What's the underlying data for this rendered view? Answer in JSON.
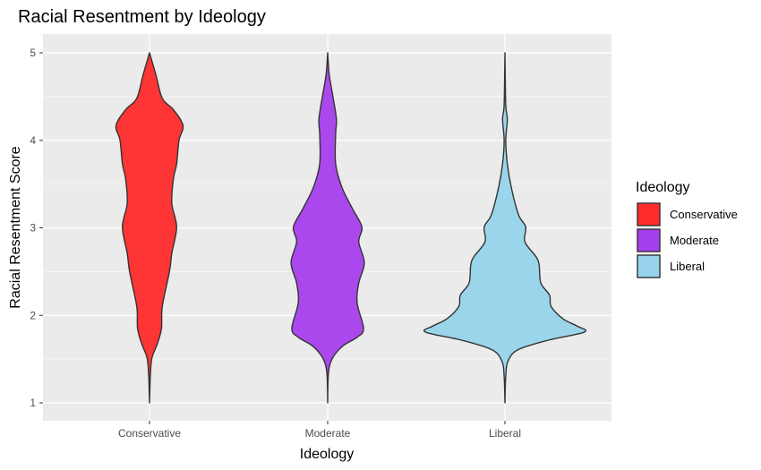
{
  "chart_data": {
    "type": "violin",
    "title": "Racial Resentment by Ideology",
    "xlabel": "Ideology",
    "ylabel": "Racial Resentment Score",
    "ylim": [
      0.8,
      5.2
    ],
    "yticks": [
      1,
      2,
      3,
      4,
      5
    ],
    "grid": true,
    "legend": {
      "title": "Ideology",
      "placement": "right"
    },
    "density_note": "relative density (max = 1) at score values",
    "series": [
      {
        "name": "Conservative",
        "color": "#ff2b2b",
        "profile": [
          [
            5,
            0
          ],
          [
            4.75,
            0.08
          ],
          [
            4.48,
            0.16
          ],
          [
            4.35,
            0.3
          ],
          [
            4.17,
            0.42
          ],
          [
            4.0,
            0.37
          ],
          [
            3.73,
            0.34
          ],
          [
            3.56,
            0.3
          ],
          [
            3.28,
            0.28
          ],
          [
            3.01,
            0.34
          ],
          [
            2.71,
            0.28
          ],
          [
            2.5,
            0.25
          ],
          [
            2.1,
            0.16
          ],
          [
            1.85,
            0.15
          ],
          [
            1.68,
            0.1
          ],
          [
            1.51,
            0.03
          ],
          [
            1.3,
            0.01
          ],
          [
            1,
            0
          ]
        ]
      },
      {
        "name": "Moderate",
        "color": "#a63fed",
        "profile": [
          [
            5,
            0
          ],
          [
            4.75,
            0.02
          ],
          [
            4.48,
            0.07
          ],
          [
            4.24,
            0.11
          ],
          [
            4.07,
            0.1
          ],
          [
            3.73,
            0.1
          ],
          [
            3.46,
            0.18
          ],
          [
            3.22,
            0.31
          ],
          [
            3.01,
            0.43
          ],
          [
            2.84,
            0.39
          ],
          [
            2.6,
            0.46
          ],
          [
            2.37,
            0.39
          ],
          [
            2.14,
            0.37
          ],
          [
            1.85,
            0.45
          ],
          [
            1.75,
            0.37
          ],
          [
            1.65,
            0.19
          ],
          [
            1.51,
            0.06
          ],
          [
            1.34,
            0.01
          ],
          [
            1,
            0
          ]
        ]
      },
      {
        "name": "Liberal",
        "color": "#97d4ec",
        "profile": [
          [
            5,
            0
          ],
          [
            4.41,
            0.01
          ],
          [
            4.24,
            0.03
          ],
          [
            4.0,
            0.01
          ],
          [
            3.73,
            0.03
          ],
          [
            3.46,
            0.08
          ],
          [
            3.15,
            0.17
          ],
          [
            3.01,
            0.26
          ],
          [
            2.84,
            0.25
          ],
          [
            2.67,
            0.39
          ],
          [
            2.57,
            0.43
          ],
          [
            2.37,
            0.45
          ],
          [
            2.23,
            0.56
          ],
          [
            2.1,
            0.58
          ],
          [
            1.96,
            0.73
          ],
          [
            1.88,
            0.9
          ],
          [
            1.81,
            1.0
          ],
          [
            1.72,
            0.56
          ],
          [
            1.61,
            0.17
          ],
          [
            1.48,
            0.04
          ],
          [
            1.3,
            0.01
          ],
          [
            1,
            0
          ]
        ]
      }
    ]
  }
}
